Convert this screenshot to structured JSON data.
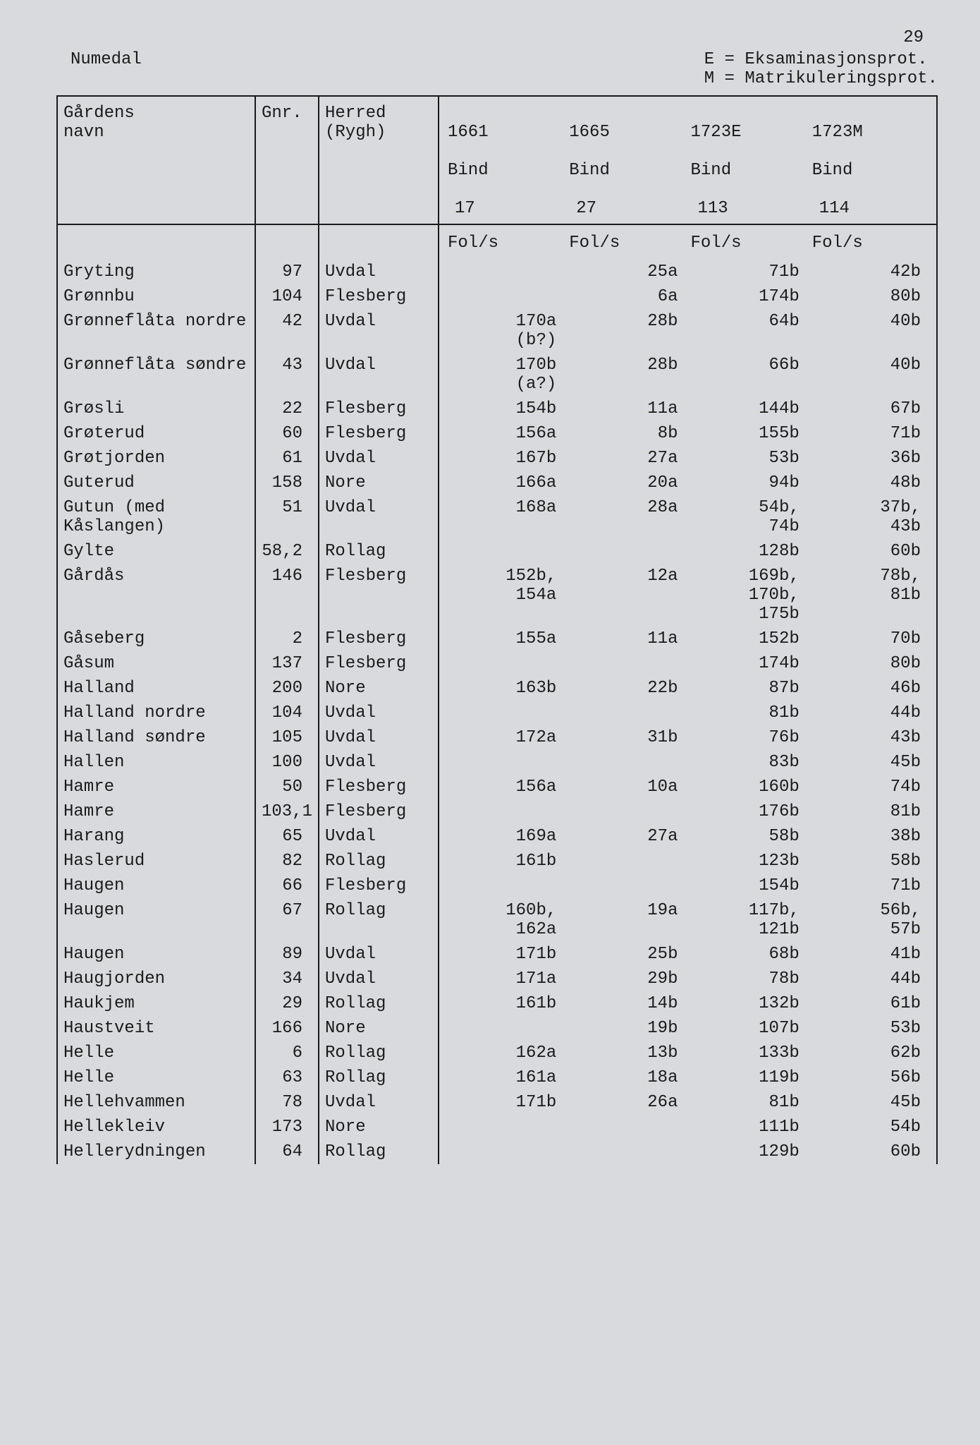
{
  "page_number": "29",
  "region": "Numedal",
  "legend": {
    "line1": "E = Eksaminasjonsprot.",
    "line2": "M = Matrikuleringsprot."
  },
  "columns": {
    "name": "Gårdens\nnavn",
    "gnr": "Gnr.",
    "herred": "Herred\n(Rygh)",
    "years": [
      {
        "year": "1661",
        "bind_label": "Bind",
        "bind": "17",
        "fol": "Fol/s"
      },
      {
        "year": "1665",
        "bind_label": "Bind",
        "bind": "27",
        "fol": "Fol/s"
      },
      {
        "year": "1723E",
        "bind_label": "Bind",
        "bind": "113",
        "fol": "Fol/s"
      },
      {
        "year": "1723M",
        "bind_label": "Bind",
        "bind": "114",
        "fol": "Fol/s"
      }
    ]
  },
  "rows": [
    {
      "name": "Gryting",
      "gnr": "97",
      "herred": "Uvdal",
      "y": [
        "",
        "25a",
        "71b",
        "42b"
      ]
    },
    {
      "name": "Grønnbu",
      "gnr": "104",
      "herred": "Flesberg",
      "y": [
        "",
        "6a",
        "174b",
        "80b"
      ]
    },
    {
      "name": "Grønneflåta nordre",
      "gnr": "42",
      "herred": "Uvdal",
      "y": [
        "170a\n(b?)",
        "28b",
        "64b",
        "40b"
      ]
    },
    {
      "name": "Grønneflåta søndre",
      "gnr": "43",
      "herred": "Uvdal",
      "y": [
        "170b\n(a?)",
        "28b",
        "66b",
        "40b"
      ]
    },
    {
      "name": "Grøsli",
      "gnr": "22",
      "herred": "Flesberg",
      "y": [
        "154b",
        "11a",
        "144b",
        "67b"
      ]
    },
    {
      "name": "Grøterud",
      "gnr": "60",
      "herred": "Flesberg",
      "y": [
        "156a",
        "8b",
        "155b",
        "71b"
      ]
    },
    {
      "name": "Grøtjorden",
      "gnr": "61",
      "herred": "Uvdal",
      "y": [
        "167b",
        "27a",
        "53b",
        "36b"
      ]
    },
    {
      "name": "Guterud",
      "gnr": "158",
      "herred": "Nore",
      "y": [
        "166a",
        "20a",
        "94b",
        "48b"
      ]
    },
    {
      "name": "Gutun (med Kåslangen)",
      "gnr": "51",
      "herred": "Uvdal",
      "y": [
        "168a",
        "28a",
        "54b,\n74b",
        "37b,\n43b"
      ]
    },
    {
      "name": "Gylte",
      "gnr": "58,2",
      "herred": "Rollag",
      "y": [
        "",
        "",
        "128b",
        "60b"
      ]
    },
    {
      "name": "Gårdås",
      "gnr": "146",
      "herred": "Flesberg",
      "y": [
        "152b,\n154a",
        "12a",
        "169b,\n170b,\n175b",
        "78b,\n81b"
      ]
    },
    {
      "name": "Gåseberg",
      "gnr": "2",
      "herred": "Flesberg",
      "y": [
        "155a",
        "11a",
        "152b",
        "70b"
      ]
    },
    {
      "name": "Gåsum",
      "gnr": "137",
      "herred": "Flesberg",
      "y": [
        "",
        "",
        "174b",
        "80b"
      ]
    },
    {
      "name": "Halland",
      "gnr": "200",
      "herred": "Nore",
      "y": [
        "163b",
        "22b",
        "87b",
        "46b"
      ]
    },
    {
      "name": "Halland nordre",
      "gnr": "104",
      "herred": "Uvdal",
      "y": [
        "",
        "",
        "81b",
        "44b"
      ]
    },
    {
      "name": "Halland søndre",
      "gnr": "105",
      "herred": "Uvdal",
      "y": [
        "172a",
        "31b",
        "76b",
        "43b"
      ]
    },
    {
      "name": "Hallen",
      "gnr": "100",
      "herred": "Uvdal",
      "y": [
        "",
        "",
        "83b",
        "45b"
      ]
    },
    {
      "name": "Hamre",
      "gnr": "50",
      "herred": "Flesberg",
      "y": [
        "156a",
        "10a",
        "160b",
        "74b"
      ]
    },
    {
      "name": "Hamre",
      "gnr": "103,1",
      "herred": "Flesberg",
      "y": [
        "",
        "",
        "176b",
        "81b"
      ]
    },
    {
      "name": "Harang",
      "gnr": "65",
      "herred": "Uvdal",
      "y": [
        "169a",
        "27a",
        "58b",
        "38b"
      ]
    },
    {
      "name": "Haslerud",
      "gnr": "82",
      "herred": "Rollag",
      "y": [
        "161b",
        "",
        "123b",
        "58b"
      ]
    },
    {
      "name": "Haugen",
      "gnr": "66",
      "herred": "Flesberg",
      "y": [
        "",
        "",
        "154b",
        "71b"
      ]
    },
    {
      "name": "Haugen",
      "gnr": "67",
      "herred": "Rollag",
      "y": [
        "160b,\n162a",
        "19a",
        "117b,\n121b",
        "56b,\n57b"
      ]
    },
    {
      "name": "Haugen",
      "gnr": "89",
      "herred": "Uvdal",
      "y": [
        "171b",
        "25b",
        "68b",
        "41b"
      ]
    },
    {
      "name": "Haugjorden",
      "gnr": "34",
      "herred": "Uvdal",
      "y": [
        "171a",
        "29b",
        "78b",
        "44b"
      ]
    },
    {
      "name": "Haukjem",
      "gnr": "29",
      "herred": "Rollag",
      "y": [
        "161b",
        "14b",
        "132b",
        "61b"
      ]
    },
    {
      "name": "Haustveit",
      "gnr": "166",
      "herred": "Nore",
      "y": [
        "",
        "19b",
        "107b",
        "53b"
      ]
    },
    {
      "name": "Helle",
      "gnr": "6",
      "herred": "Rollag",
      "y": [
        "162a",
        "13b",
        "133b",
        "62b"
      ]
    },
    {
      "name": "Helle",
      "gnr": "63",
      "herred": "Rollag",
      "y": [
        "161a",
        "18a",
        "119b",
        "56b"
      ]
    },
    {
      "name": "Hellehvammen",
      "gnr": "78",
      "herred": "Uvdal",
      "y": [
        "171b",
        "26a",
        "81b",
        "45b"
      ]
    },
    {
      "name": "Hellekleiv",
      "gnr": "173",
      "herred": "Nore",
      "y": [
        "",
        "",
        "111b",
        "54b"
      ]
    },
    {
      "name": "Hellerydningen",
      "gnr": "64",
      "herred": "Rollag",
      "y": [
        "",
        "",
        "129b",
        "60b"
      ]
    }
  ],
  "style": {
    "background": "#d8dadd",
    "text_color": "#1a1a1a",
    "border_color": "#1a1a1a",
    "font_family": "Courier New",
    "font_size_pt": 18
  }
}
